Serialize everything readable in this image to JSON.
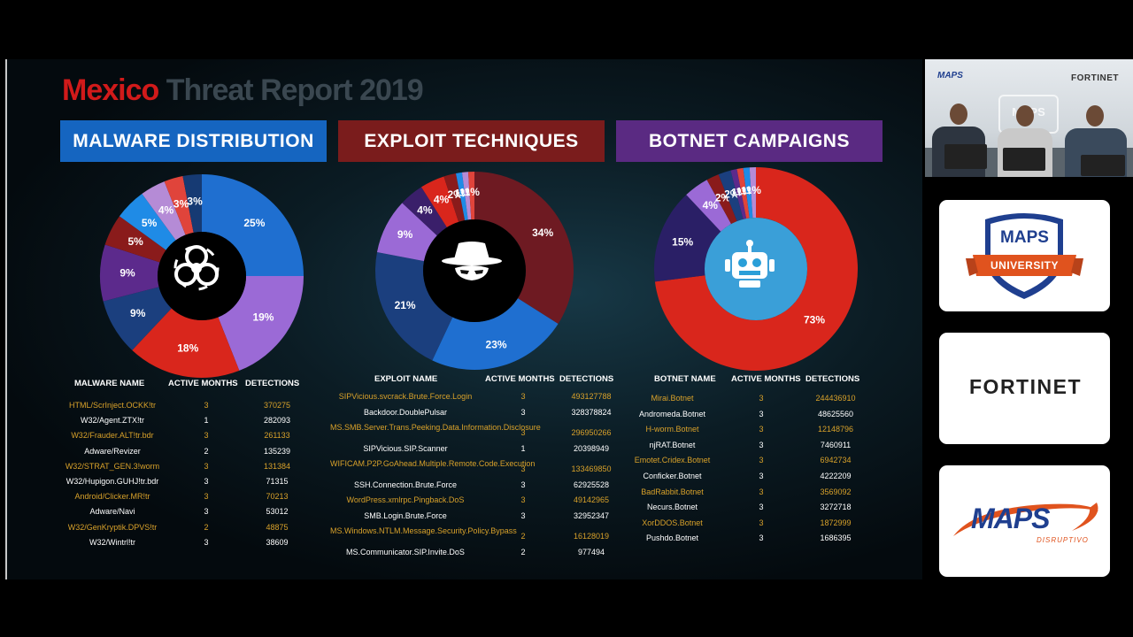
{
  "report_title": {
    "part1": "Mexico",
    "part2": " Threat Report 2019"
  },
  "sections": [
    {
      "title": "MALWARE DISTRIBUTION",
      "color": "#1565c0"
    },
    {
      "title": "EXPLOIT TECHNIQUES",
      "color": "#7a1c1c"
    },
    {
      "title": "BOTNET CAMPAIGNS",
      "color": "#5a2a82"
    }
  ],
  "chart_data": [
    {
      "type": "pie",
      "title": "MALWARE DISTRIBUTION",
      "donut": true,
      "center_icon": "biohazard-icon",
      "slices": [
        {
          "label": "25%",
          "value": 25,
          "color": "#1f6fd0"
        },
        {
          "label": "19%",
          "value": 19,
          "color": "#9b6ad6"
        },
        {
          "label": "18%",
          "value": 18,
          "color": "#d9261c"
        },
        {
          "label": "9%",
          "value": 9,
          "color": "#1b3f7e"
        },
        {
          "label": "9%",
          "value": 9,
          "color": "#5c2a8c"
        },
        {
          "label": "5%",
          "value": 5,
          "color": "#8a1b1b"
        },
        {
          "label": "5%",
          "value": 5,
          "color": "#1f8be6"
        },
        {
          "label": "4%",
          "value": 4,
          "color": "#b58bd6"
        },
        {
          "label": "3%",
          "value": 3,
          "color": "#e0443b"
        },
        {
          "label": "3%",
          "value": 3,
          "color": "#163a73"
        }
      ]
    },
    {
      "type": "pie",
      "title": "EXPLOIT TECHNIQUES",
      "donut": true,
      "center_icon": "hacker-icon",
      "slices": [
        {
          "label": "34%",
          "value": 34,
          "color": "#6e1a22"
        },
        {
          "label": "23%",
          "value": 23,
          "color": "#1f6fd0"
        },
        {
          "label": "21%",
          "value": 21,
          "color": "#1b3f7e"
        },
        {
          "label": "9%",
          "value": 9,
          "color": "#9b6ad6"
        },
        {
          "label": "4%",
          "value": 4,
          "color": "#3a1f6a"
        },
        {
          "label": "4%",
          "value": 4,
          "color": "#d9261c"
        },
        {
          "label": "2%",
          "value": 2,
          "color": "#8a1b1b"
        },
        {
          "label": "1%",
          "value": 1,
          "color": "#1f8be6"
        },
        {
          "label": "1%",
          "value": 1,
          "color": "#b58bd6"
        },
        {
          "label": "1%",
          "value": 1,
          "color": "#e0443b"
        }
      ]
    },
    {
      "type": "pie",
      "title": "BOTNET CAMPAIGNS",
      "donut": true,
      "center_icon": "robot-icon",
      "slices": [
        {
          "label": "73%",
          "value": 73,
          "color": "#d9261c"
        },
        {
          "label": "15%",
          "value": 15,
          "color": "#2a1f66"
        },
        {
          "label": "4%",
          "value": 4,
          "color": "#9b6ad6"
        },
        {
          "label": "2%",
          "value": 2,
          "color": "#8a1b1b"
        },
        {
          "label": "2%",
          "value": 2,
          "color": "#1b3f7e"
        },
        {
          "label": "1%",
          "value": 1,
          "color": "#5c2a8c"
        },
        {
          "label": "1%",
          "value": 1,
          "color": "#e0443b"
        },
        {
          "label": "1%",
          "value": 1,
          "color": "#1f8be6"
        },
        {
          "label": "1%",
          "value": 1,
          "color": "#b58bd6"
        }
      ]
    }
  ],
  "tables": {
    "malware": {
      "headers": [
        "MALWARE NAME",
        "ACTIVE MONTHS",
        "DETECTIONS"
      ],
      "rows": [
        {
          "name": "HTML/ScrInject.OCKK!tr",
          "months": "3",
          "detections": "370275",
          "highlight": true
        },
        {
          "name": "W32/Agent.ZTX!tr",
          "months": "1",
          "detections": "282093",
          "highlight": false
        },
        {
          "name": "W32/Frauder.ALT!tr.bdr",
          "months": "3",
          "detections": "261133",
          "highlight": true
        },
        {
          "name": "Adware/Revizer",
          "months": "2",
          "detections": "135239",
          "highlight": false
        },
        {
          "name": "W32/STRAT_GEN.3!worm",
          "months": "3",
          "detections": "131384",
          "highlight": true
        },
        {
          "name": "W32/Hupigon.GUHJ!tr.bdr",
          "months": "3",
          "detections": "71315",
          "highlight": false
        },
        {
          "name": "Android/Clicker.MR!tr",
          "months": "3",
          "detections": "70213",
          "highlight": true
        },
        {
          "name": "Adware/Navi",
          "months": "3",
          "detections": "53012",
          "highlight": false
        },
        {
          "name": "W32/GenKryptik.DPVS!tr",
          "months": "2",
          "detections": "48875",
          "highlight": true
        },
        {
          "name": "W32/Wintrl!tr",
          "months": "3",
          "detections": "38609",
          "highlight": false
        }
      ]
    },
    "exploit": {
      "headers": [
        "EXPLOIT NAME",
        "ACTIVE MONTHS",
        "DETECTIONS"
      ],
      "rows": [
        {
          "name": "SIPVicious.svcrack.Brute.Force.Login",
          "months": "3",
          "detections": "493127788",
          "highlight": true
        },
        {
          "name": "Backdoor.DoublePulsar",
          "months": "3",
          "detections": "328378824",
          "highlight": false
        },
        {
          "name": "MS.SMB.Server.Trans.Peeking.Data.Information.Disclosure",
          "months": "3",
          "detections": "296950266",
          "highlight": true
        },
        {
          "name": "SIPVicious.SIP.Scanner",
          "months": "1",
          "detections": "20398949",
          "highlight": false
        },
        {
          "name": "WIFICAM.P2P.GoAhead.Multiple.Remote.Code.Execution",
          "months": "3",
          "detections": "133469850",
          "highlight": true
        },
        {
          "name": "SSH.Connection.Brute.Force",
          "months": "3",
          "detections": "62925528",
          "highlight": false
        },
        {
          "name": "WordPress.xmlrpc.Pingback.DoS",
          "months": "3",
          "detections": "49142965",
          "highlight": true
        },
        {
          "name": "SMB.Login.Brute.Force",
          "months": "3",
          "detections": "32952347",
          "highlight": false
        },
        {
          "name": "MS.Windows.NTLM.Message.Security.Policy.Bypass",
          "months": "2",
          "detections": "16128019",
          "highlight": true
        },
        {
          "name": "MS.Communicator.SIP.Invite.DoS",
          "months": "2",
          "detections": "977494",
          "highlight": false
        }
      ]
    },
    "botnet": {
      "headers": [
        "BOTNET NAME",
        "ACTIVE MONTHS",
        "DETECTIONS"
      ],
      "rows": [
        {
          "name": "Mirai.Botnet",
          "months": "3",
          "detections": "244436910",
          "highlight": true
        },
        {
          "name": "Andromeda.Botnet",
          "months": "3",
          "detections": "48625560",
          "highlight": false
        },
        {
          "name": "H-worm.Botnet",
          "months": "3",
          "detections": "12148796",
          "highlight": true
        },
        {
          "name": "njRAT.Botnet",
          "months": "3",
          "detections": "7460911",
          "highlight": false
        },
        {
          "name": "Emotet.Cridex.Botnet",
          "months": "3",
          "detections": "6942734",
          "highlight": true
        },
        {
          "name": "Conficker.Botnet",
          "months": "3",
          "detections": "4222209",
          "highlight": false
        },
        {
          "name": "BadRabbit.Botnet",
          "months": "3",
          "detections": "3569092",
          "highlight": true
        },
        {
          "name": "Necurs.Botnet",
          "months": "3",
          "detections": "3272718",
          "highlight": false
        },
        {
          "name": "XorDDOS.Botnet",
          "months": "3",
          "detections": "1872999",
          "highlight": true
        },
        {
          "name": "Pushdo.Botnet",
          "months": "3",
          "detections": "1686395",
          "highlight": false
        }
      ]
    }
  },
  "webcam": {
    "logo_left": "MAPS",
    "logo_right": "FORTINET",
    "banner": "MAPS"
  },
  "sponsor_cards": [
    {
      "name": "MAPS UNIVERSITY",
      "text1": "MAPS",
      "text2": "UNIVERSITY"
    },
    {
      "name": "FORTINET",
      "text1": "FORTINET"
    },
    {
      "name": "MAPS DISRUPTIVO",
      "text1": "MAPS",
      "text2": "DISRUPTIVO"
    }
  ]
}
